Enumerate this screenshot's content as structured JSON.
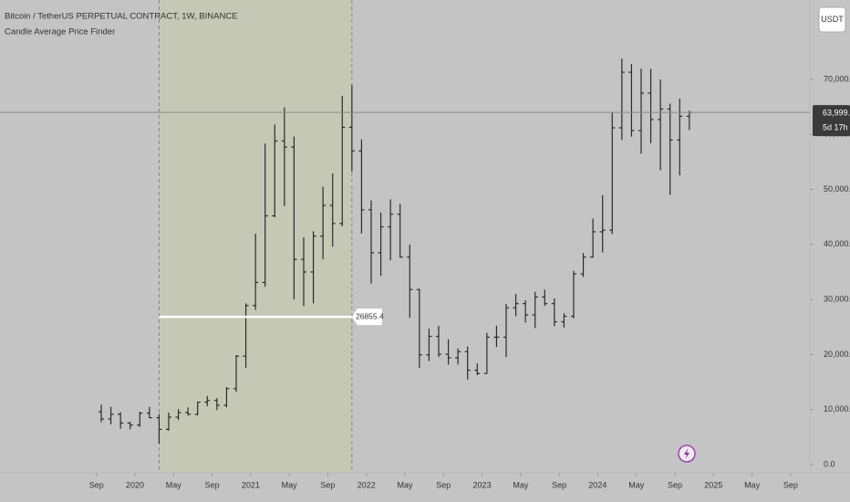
{
  "chart_data": {
    "type": "ohlc",
    "title": "Bitcoin / TetherUS PERPETUAL CONTRACT, 1W, BINANCE",
    "subtitle": "Candle Average Price Finder",
    "currency_button": "USDT",
    "color": "#2a2a2a",
    "x": [
      "2019-09",
      "2019-10",
      "2019-11",
      "2019-12",
      "2020-01",
      "2020-02",
      "2020-03",
      "2020-04",
      "2020-05",
      "2020-06",
      "2020-07",
      "2020-08",
      "2020-09",
      "2020-10",
      "2020-11",
      "2020-12",
      "2021-01",
      "2021-02",
      "2021-03",
      "2021-04",
      "2021-05",
      "2021-06",
      "2021-07",
      "2021-08",
      "2021-09",
      "2021-10",
      "2021-11",
      "2021-12",
      "2022-01",
      "2022-02",
      "2022-03",
      "2022-04",
      "2022-05",
      "2022-06",
      "2022-07",
      "2022-08",
      "2022-09",
      "2022-10",
      "2022-11",
      "2022-12",
      "2023-01",
      "2023-02",
      "2023-03",
      "2023-04",
      "2023-05",
      "2023-06",
      "2023-07",
      "2023-08",
      "2023-09",
      "2023-10",
      "2023-11",
      "2023-12",
      "2024-01",
      "2024-02",
      "2024-03",
      "2024-04",
      "2024-05",
      "2024-06",
      "2024-07",
      "2024-08",
      "2024-09",
      "2024-10"
    ],
    "open": [
      9600,
      8300,
      9150,
      7550,
      7190,
      9350,
      8520,
      6410,
      8620,
      9450,
      9140,
      11350,
      11650,
      10780,
      13800,
      19700,
      28900,
      33100,
      45200,
      58800,
      57700,
      37300,
      35000,
      41500,
      47100,
      43800,
      61300,
      57000,
      46300,
      38500,
      43200,
      45500,
      37700,
      31800,
      19950,
      23300,
      20050,
      19400,
      20500,
      17150,
      16550,
      23150,
      23150,
      28500,
      29250,
      27200,
      30450,
      29250,
      25950,
      26950,
      34650,
      37700,
      42300,
      42600,
      61200,
      71300,
      60700,
      67500,
      62700,
      64600,
      59000,
      63300
    ],
    "high": [
      10900,
      10500,
      9500,
      7750,
      9600,
      10500,
      9200,
      9470,
      10080,
      10380,
      11450,
      12470,
      12080,
      14100,
      19900,
      29300,
      41950,
      58350,
      61800,
      64900,
      59600,
      41300,
      42400,
      50500,
      52900,
      67000,
      69000,
      59100,
      48000,
      45800,
      48200,
      47400,
      40000,
      31950,
      24700,
      25200,
      22800,
      21100,
      21450,
      18400,
      23950,
      25250,
      29200,
      31000,
      29850,
      31400,
      31800,
      30200,
      27500,
      35200,
      38450,
      44700,
      48950,
      64000,
      73800,
      72800,
      71950,
      71900,
      70000,
      65600,
      66500,
      64300
    ],
    "low": [
      7700,
      7300,
      6500,
      6430,
      6850,
      8450,
      3800,
      6150,
      8100,
      8900,
      8950,
      10600,
      9900,
      10400,
      13200,
      17600,
      28100,
      32300,
      44950,
      47000,
      30000,
      28800,
      29300,
      37300,
      39600,
      43300,
      53250,
      42000,
      32900,
      34300,
      37150,
      37600,
      26700,
      17600,
      18800,
      19550,
      18150,
      18200,
      15450,
      16250,
      16500,
      21350,
      19550,
      26950,
      25800,
      24800,
      28850,
      25150,
      24900,
      26550,
      34100,
      37600,
      38550,
      41900,
      59000,
      59600,
      56500,
      58400,
      53500,
      49000,
      52550,
      60800
    ],
    "close": [
      8300,
      9150,
      7550,
      7190,
      9350,
      8520,
      6410,
      8620,
      9450,
      9140,
      11350,
      11650,
      10780,
      13800,
      19700,
      28900,
      33100,
      45200,
      58800,
      57700,
      37300,
      35000,
      41500,
      47100,
      43800,
      61300,
      57000,
      46300,
      38500,
      43200,
      45500,
      37700,
      31800,
      19950,
      23300,
      20050,
      19400,
      20500,
      17150,
      16550,
      23150,
      23150,
      28500,
      29250,
      27200,
      30450,
      29250,
      25950,
      26950,
      34650,
      37700,
      42300,
      42600,
      61200,
      71300,
      60700,
      67500,
      62700,
      64600,
      59000,
      63300,
      63999.4
    ],
    "xlim": [
      "2018-11",
      "2025-11"
    ],
    "xticks": [
      {
        "value": "2019-09",
        "label": "Sep"
      },
      {
        "value": "2020-01",
        "label": "2020"
      },
      {
        "value": "2020-05",
        "label": "May"
      },
      {
        "value": "2020-09",
        "label": "Sep"
      },
      {
        "value": "2021-01",
        "label": "2021"
      },
      {
        "value": "2021-05",
        "label": "May"
      },
      {
        "value": "2021-09",
        "label": "Sep"
      },
      {
        "value": "2022-01",
        "label": "2022"
      },
      {
        "value": "2022-05",
        "label": "May"
      },
      {
        "value": "2022-09",
        "label": "Sep"
      },
      {
        "value": "2023-01",
        "label": "2023"
      },
      {
        "value": "2023-05",
        "label": "May"
      },
      {
        "value": "2023-09",
        "label": "Sep"
      },
      {
        "value": "2024-01",
        "label": "2024"
      },
      {
        "value": "2024-05",
        "label": "May"
      },
      {
        "value": "2024-09",
        "label": "Sep"
      },
      {
        "value": "2025-01",
        "label": "2025"
      },
      {
        "value": "2025-05",
        "label": "May"
      },
      {
        "value": "2025-09",
        "label": "Sep"
      }
    ],
    "ylim": [
      -995,
      84425
    ],
    "yticks": [
      {
        "value": 0,
        "label": "0.0"
      },
      {
        "value": 10000,
        "label": "10,000.0"
      },
      {
        "value": 20000,
        "label": "20,000.0"
      },
      {
        "value": 30000,
        "label": "30,000.0"
      },
      {
        "value": 40000,
        "label": "40,000.0"
      },
      {
        "value": 50000,
        "label": "50,000.0"
      },
      {
        "value": 60000,
        "label": "60,000.0"
      },
      {
        "value": 70000,
        "label": "70,000.0"
      }
    ],
    "last_price": {
      "value": 63999.4,
      "label": "63,999.4",
      "countdown": "5d 17h"
    },
    "average": {
      "value": 26855.4,
      "start": "2020-03",
      "end": "2021-11",
      "color": "#ffffff",
      "zone_color": "#c6c8b6"
    }
  }
}
